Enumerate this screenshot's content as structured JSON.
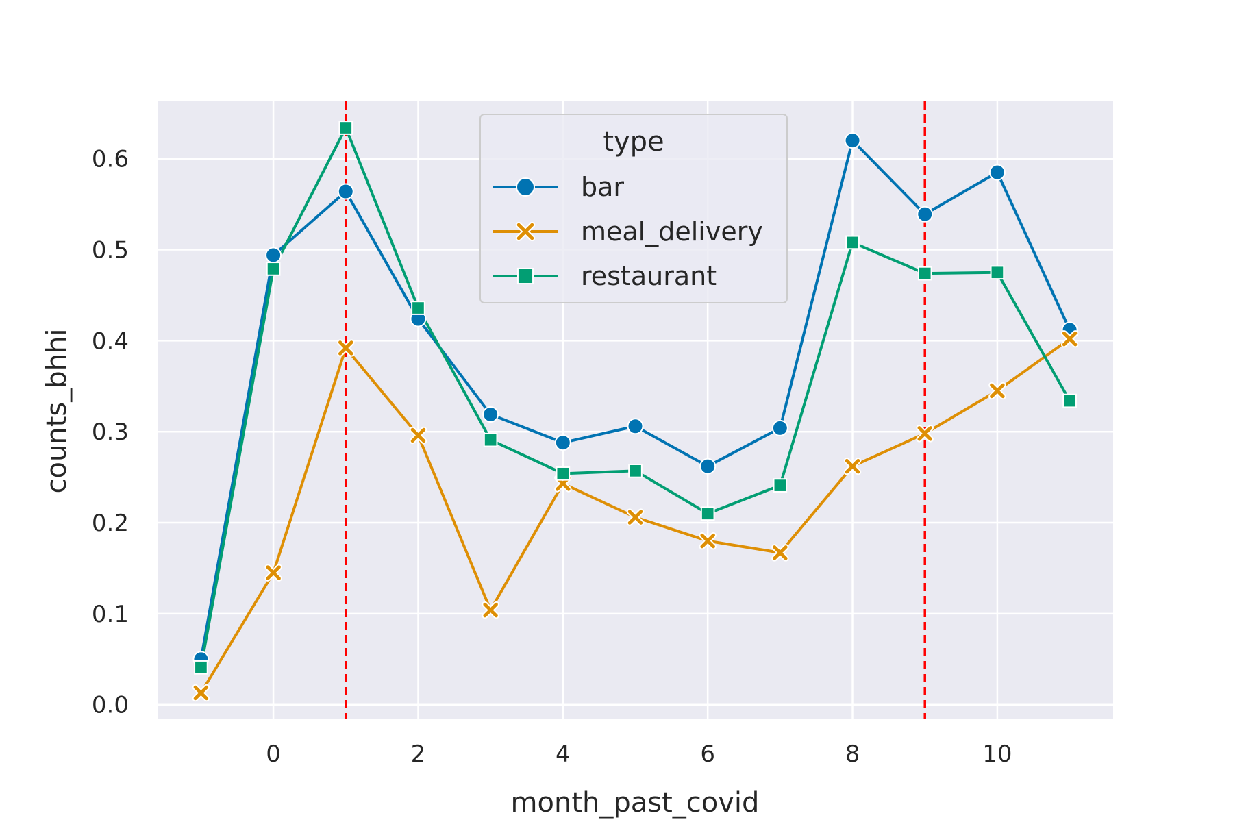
{
  "chart_data": {
    "type": "line",
    "xlabel": "month_past_covid",
    "ylabel": "counts_bhhi",
    "xlim": [
      -1.6,
      11.6
    ],
    "ylim": [
      -0.016,
      0.663
    ],
    "x_ticks": [
      0,
      2,
      4,
      6,
      8,
      10
    ],
    "y_ticks": [
      0.0,
      0.1,
      0.2,
      0.3,
      0.4,
      0.5,
      0.6
    ],
    "x_tick_labels": [
      "0",
      "2",
      "4",
      "6",
      "8",
      "10"
    ],
    "y_tick_labels": [
      "0.0",
      "0.1",
      "0.2",
      "0.3",
      "0.4",
      "0.5",
      "0.6"
    ],
    "grid": true,
    "background": "#eaeaf2",
    "legend": {
      "title": "type",
      "placement": "upper-center"
    },
    "x": [
      -1,
      0,
      1,
      2,
      3,
      4,
      5,
      6,
      7,
      8,
      9,
      10,
      11
    ],
    "series": [
      {
        "name": "bar",
        "color": "#0173b2",
        "marker": "circle",
        "values": [
          0.05,
          0.494,
          0.564,
          0.424,
          0.319,
          0.288,
          0.306,
          0.262,
          0.304,
          0.62,
          0.539,
          0.585,
          0.412
        ]
      },
      {
        "name": "meal_delivery",
        "color": "#de8f05",
        "marker": "x",
        "values": [
          0.013,
          0.145,
          0.392,
          0.296,
          0.104,
          0.243,
          0.206,
          0.18,
          0.167,
          0.262,
          0.298,
          0.345,
          0.402
        ]
      },
      {
        "name": "restaurant",
        "color": "#029e73",
        "marker": "square",
        "values": [
          0.041,
          0.479,
          0.634,
          0.436,
          0.291,
          0.254,
          0.257,
          0.21,
          0.241,
          0.508,
          0.474,
          0.475,
          0.334
        ]
      }
    ],
    "vlines": [
      {
        "x": 1,
        "color": "#ff0000",
        "style": "dashed"
      },
      {
        "x": 9,
        "color": "#ff0000",
        "style": "dashed"
      }
    ]
  }
}
